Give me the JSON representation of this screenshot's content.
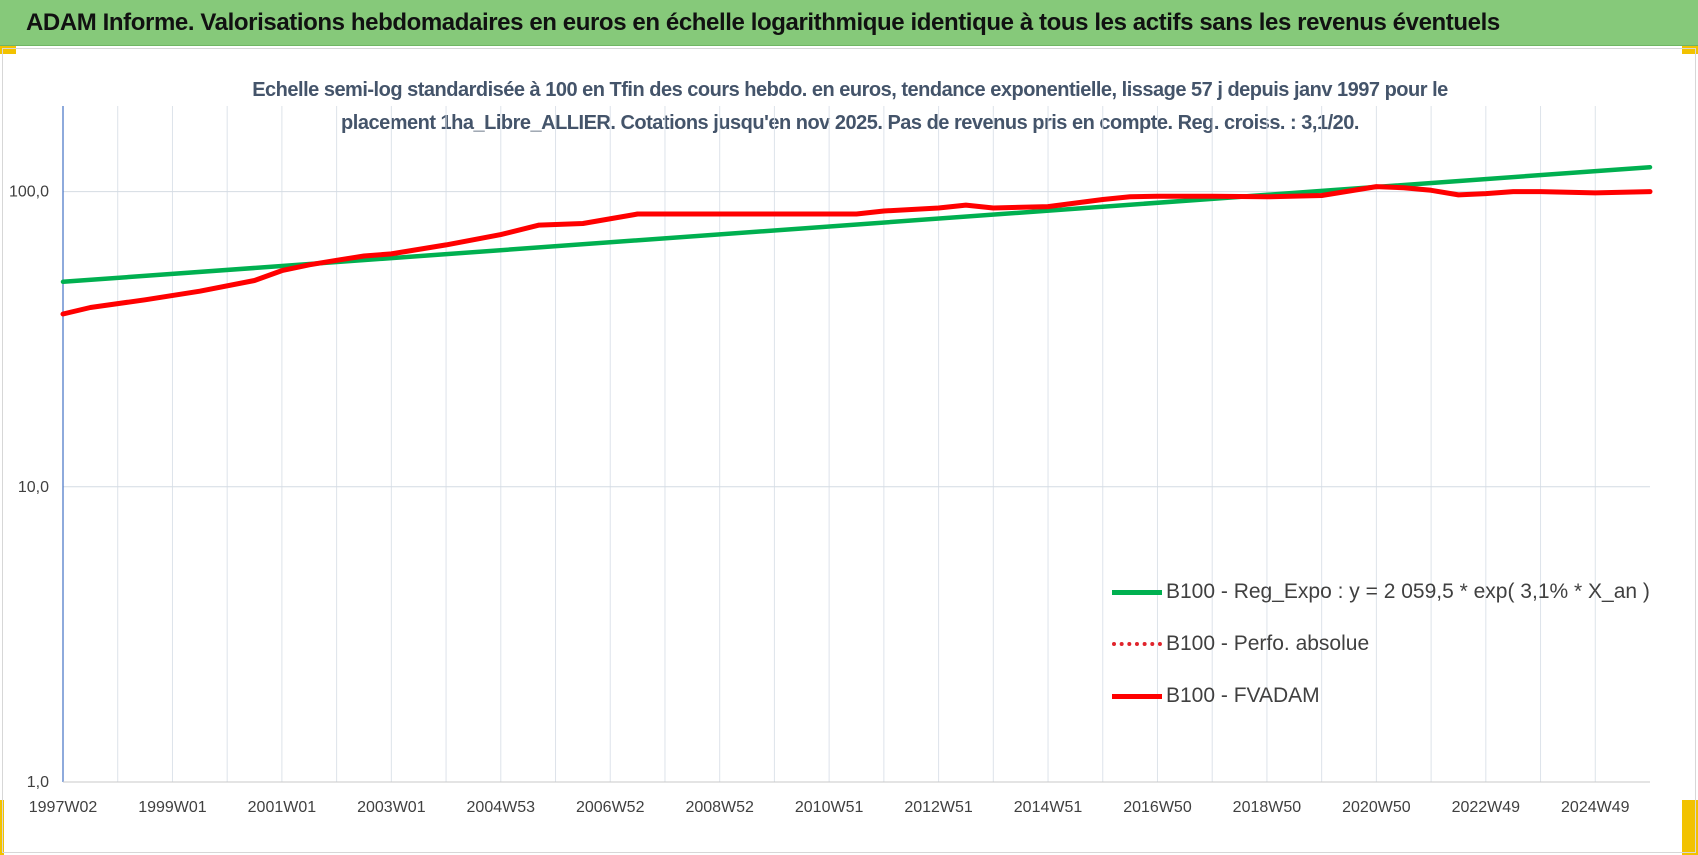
{
  "banner": {
    "title": "ADAM Informe. Valorisations hebdomadaires en euros en échelle logarithmique identique à tous les actifs sans les revenus éventuels"
  },
  "chart_data": {
    "type": "line",
    "title": "Echelle semi-log standardisée à 100 en Tfin des cours hebdo. en euros, tendance exponentielle, lissage 57 j depuis janv 1997 pour le placement 1ha_Libre_ALLIER. Cotations jusqu'en nov 2025. Pas de revenus pris en compte. Reg. croiss. : 3,1/20.",
    "title_lines": [
      "Echelle semi-log standardisée à 100 en Tfin des cours hebdo. en euros, tendance exponentielle, lissage 57 j depuis janv 1997 pour le",
      "placement 1ha_Libre_ALLIER. Cotations jusqu'en nov 2025. Pas de revenus pris en compte. Reg. croiss. : 3,1/20."
    ],
    "xlabel": "",
    "ylabel": "",
    "y_scale": "log",
    "ylim": [
      1,
      200
    ],
    "xlim": [
      1997.0,
      2026.0
    ],
    "grid": true,
    "legend_position": "lower-right",
    "x_tick_labels": [
      "1997W02",
      "1999W01",
      "2001W01",
      "2003W01",
      "2004W53",
      "2006W52",
      "2008W52",
      "2010W51",
      "2012W51",
      "2014W51",
      "2016W50",
      "2018W50",
      "2020W50",
      "2022W49",
      "2024W49"
    ],
    "x_tick_positions": [
      1997.0,
      1999.0,
      2001.0,
      2003.0,
      2005.0,
      2007.0,
      2009.0,
      2011.0,
      2013.0,
      2015.0,
      2017.0,
      2019.0,
      2021.0,
      2023.0,
      2025.0
    ],
    "y_ticks": [
      1,
      10,
      100
    ],
    "y_tick_labels": [
      "1,0",
      "10,0",
      "100,0"
    ],
    "series": [
      {
        "name": "B100 - Reg_Expo : y = 2 059,5 * exp( 3,1% *  X_an )",
        "color": "#00b050",
        "style": "solid",
        "x": [
          1997.0,
          2026.0
        ],
        "y": [
          49.5,
          121.0
        ]
      },
      {
        "name": "B100 - Perfo. absolue",
        "color": "#e0242c",
        "style": "dotted",
        "x": [],
        "y": []
      },
      {
        "name": "B100 - FVADAM",
        "color": "#ff0000",
        "style": "solid",
        "x": [
          1997.0,
          1997.5,
          1998.5,
          1999.5,
          2000.5,
          2001.0,
          2001.5,
          2002.0,
          2002.5,
          2003.0,
          2004.0,
          2005.0,
          2005.7,
          2006.5,
          2007.5,
          2008.0,
          2008.5,
          2010.0,
          2011.5,
          2012.0,
          2013.0,
          2013.5,
          2014.0,
          2015.0,
          2016.0,
          2016.5,
          2017.0,
          2018.0,
          2019.0,
          2020.0,
          2021.0,
          2021.5,
          2022.0,
          2022.5,
          2023.0,
          2023.5,
          2024.0,
          2025.0,
          2026.0
        ],
        "y": [
          38.5,
          40.5,
          43.0,
          46.0,
          50.0,
          54.0,
          56.5,
          58.5,
          60.5,
          61.5,
          66.0,
          71.5,
          77.0,
          78.0,
          84.0,
          84.0,
          84.0,
          84.0,
          84.0,
          86.0,
          88.0,
          90.0,
          88.0,
          89.0,
          94.0,
          96.0,
          96.5,
          96.5,
          96.0,
          97.0,
          104.0,
          103.0,
          101.0,
          97.5,
          98.5,
          100.0,
          100.0,
          99.0,
          100.0
        ]
      }
    ]
  }
}
